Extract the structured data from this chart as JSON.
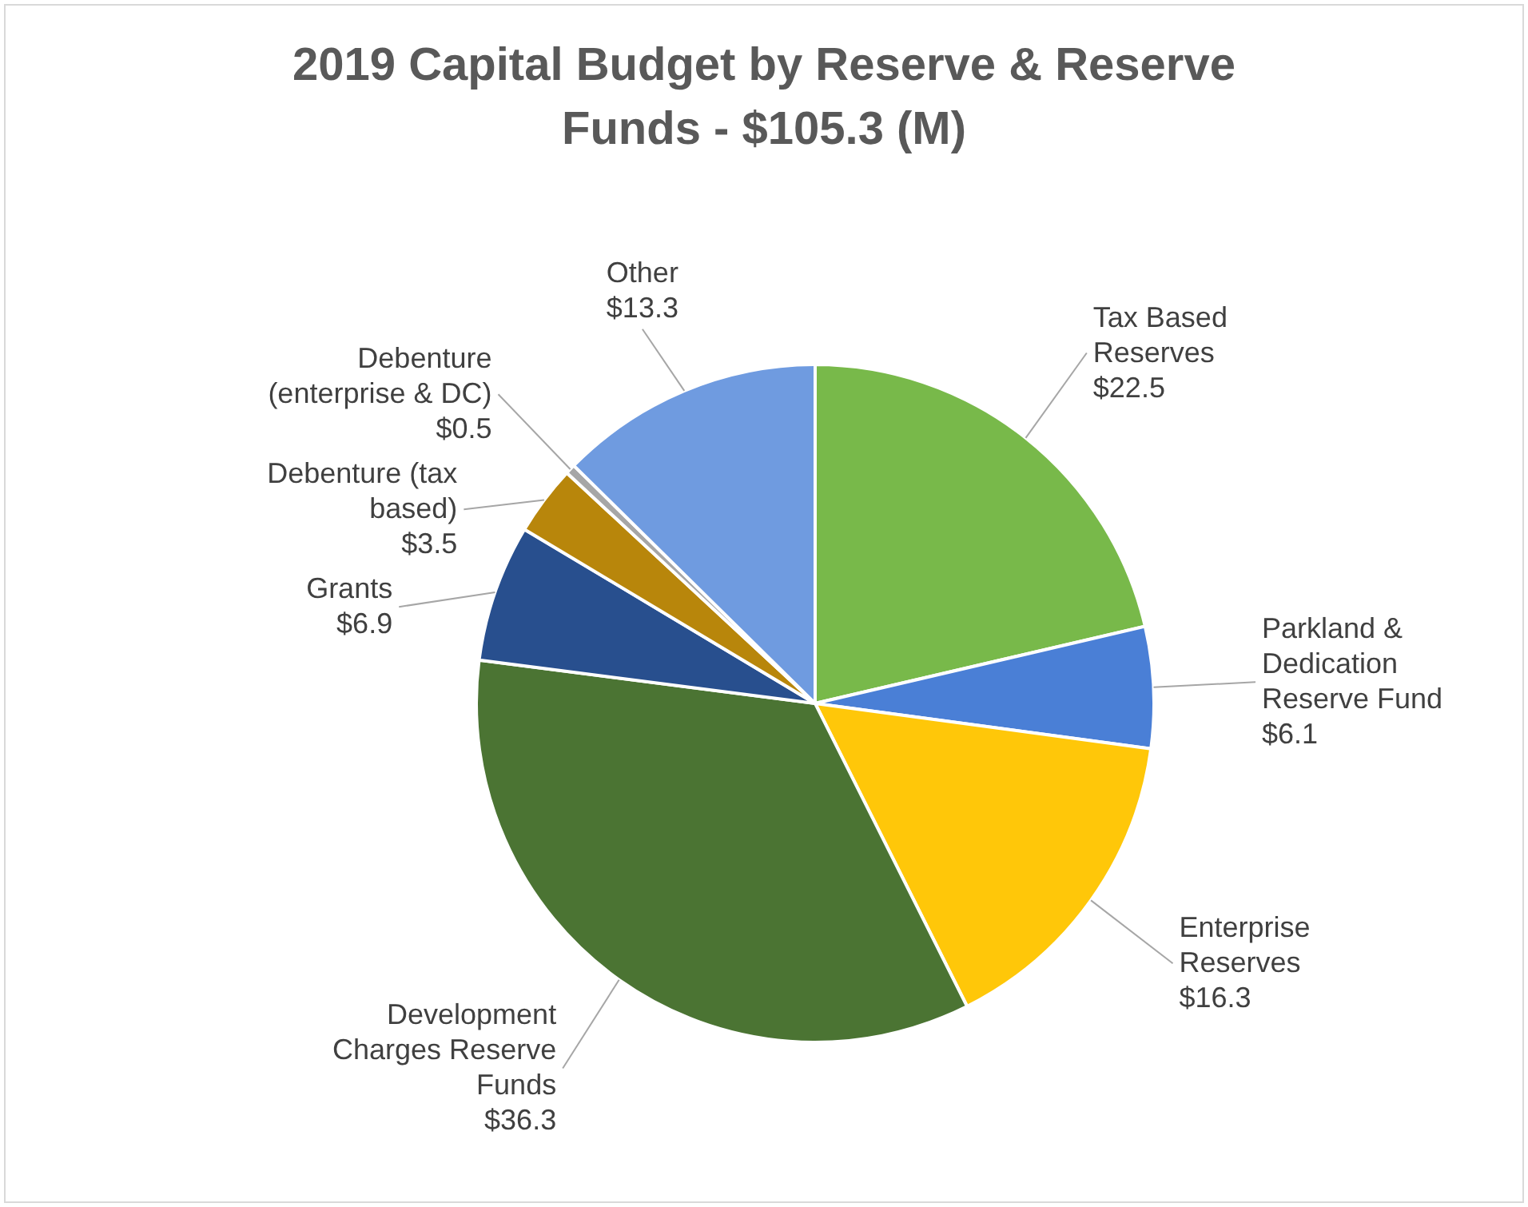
{
  "chart_data": {
    "type": "pie",
    "title": "2019 Capital Budget by Reserve & Reserve Funds - $105.3 (M)",
    "categories": [
      "Tax Based Reserves",
      "Parkland & Dedication Reserve Fund",
      "Enterprise Reserves",
      "Development Charges Reserve Funds",
      "Grants",
      "Debenture (tax based)",
      "Debenture (enterprise  & DC)",
      "Other"
    ],
    "values": [
      22.5,
      6.1,
      16.3,
      36.3,
      6.9,
      3.5,
      0.5,
      13.3
    ],
    "value_labels": [
      "$22.5",
      "$6.1",
      "$16.3",
      "$36.3",
      "$6.9",
      "$3.5",
      "$0.5",
      "$13.3"
    ],
    "colors": [
      "#78b94a",
      "#4a7fd6",
      "#ffc709",
      "#4b7433",
      "#284f8e",
      "#b8860b",
      "#a6a6a6",
      "#6f9be0"
    ]
  }
}
